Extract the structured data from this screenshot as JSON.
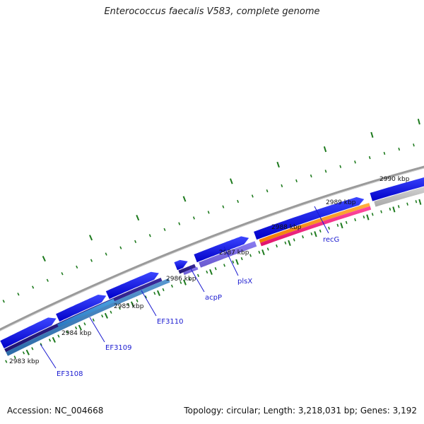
{
  "title": "Enterococcus faecalis V583, complete genome",
  "footer": {
    "accession": "Accession: NC_004668",
    "summary": "Topology: circular; Length: 3,218,031 bp; Genes: 3,192"
  },
  "colors": {
    "backbone": "#888888",
    "tick": "#1d7a1d",
    "cds": "#0a0ff0",
    "label": "#1a1ad0"
  },
  "tick_labels": [
    "2983 kbp",
    "2984 kbp",
    "2985 kbp",
    "2986 kbp",
    "2987 kbp",
    "2988 kbp",
    "2989 kbp",
    "2990 kbp"
  ],
  "genes": [
    "EF3108",
    "EF3109",
    "EF3110",
    "acpP",
    "plsX",
    "recG"
  ]
}
